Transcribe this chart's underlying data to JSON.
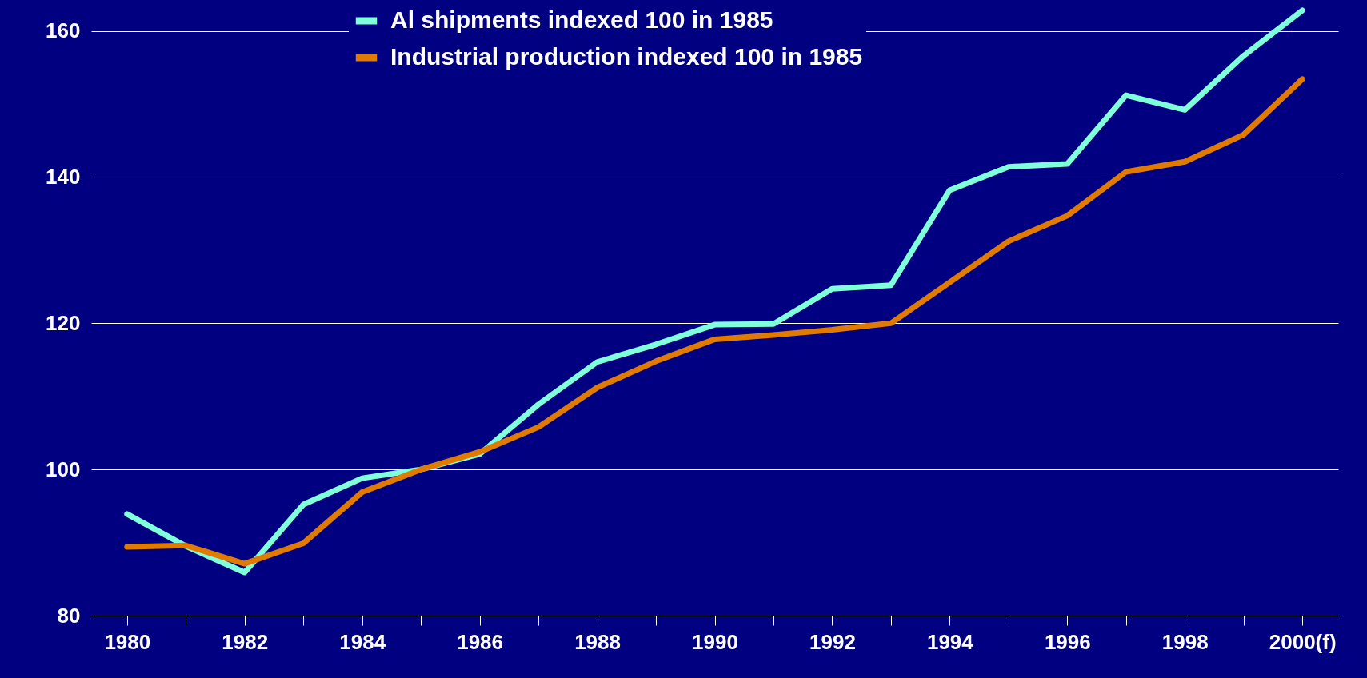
{
  "chart_data": {
    "type": "line",
    "categories": [
      "1980",
      null,
      "1982",
      null,
      "1984",
      null,
      "1986",
      null,
      "1988",
      null,
      "1990",
      null,
      "1992",
      null,
      "1994",
      null,
      "1996",
      null,
      "1998",
      null,
      "2000(f)"
    ],
    "series": [
      {
        "name": "Al shipments indexed 100 in 1985",
        "color": "#80ffdb",
        "values": [
          93.9,
          89.5,
          85.9,
          95.2,
          98.8,
          100,
          102.1,
          108.9,
          114.7,
          117.1,
          119.8,
          119.9,
          124.7,
          125.2,
          138.2,
          141.4,
          141.8,
          151.2,
          149.2,
          156.6,
          162.8
        ]
      },
      {
        "name": "Industrial production indexed 100 in 1985",
        "color": "#e07b00",
        "values": [
          89.4,
          89.6,
          87.1,
          89.9,
          96.9,
          100,
          102.4,
          105.8,
          111.2,
          114.8,
          117.8,
          118.4,
          119.1,
          120,
          125.6,
          131.2,
          134.7,
          140.7,
          142.1,
          145.8,
          153.4
        ]
      }
    ],
    "ylim": [
      80,
      164
    ],
    "yticks": [
      80,
      100,
      120,
      140,
      160
    ],
    "grid": "y",
    "legend": "top"
  }
}
